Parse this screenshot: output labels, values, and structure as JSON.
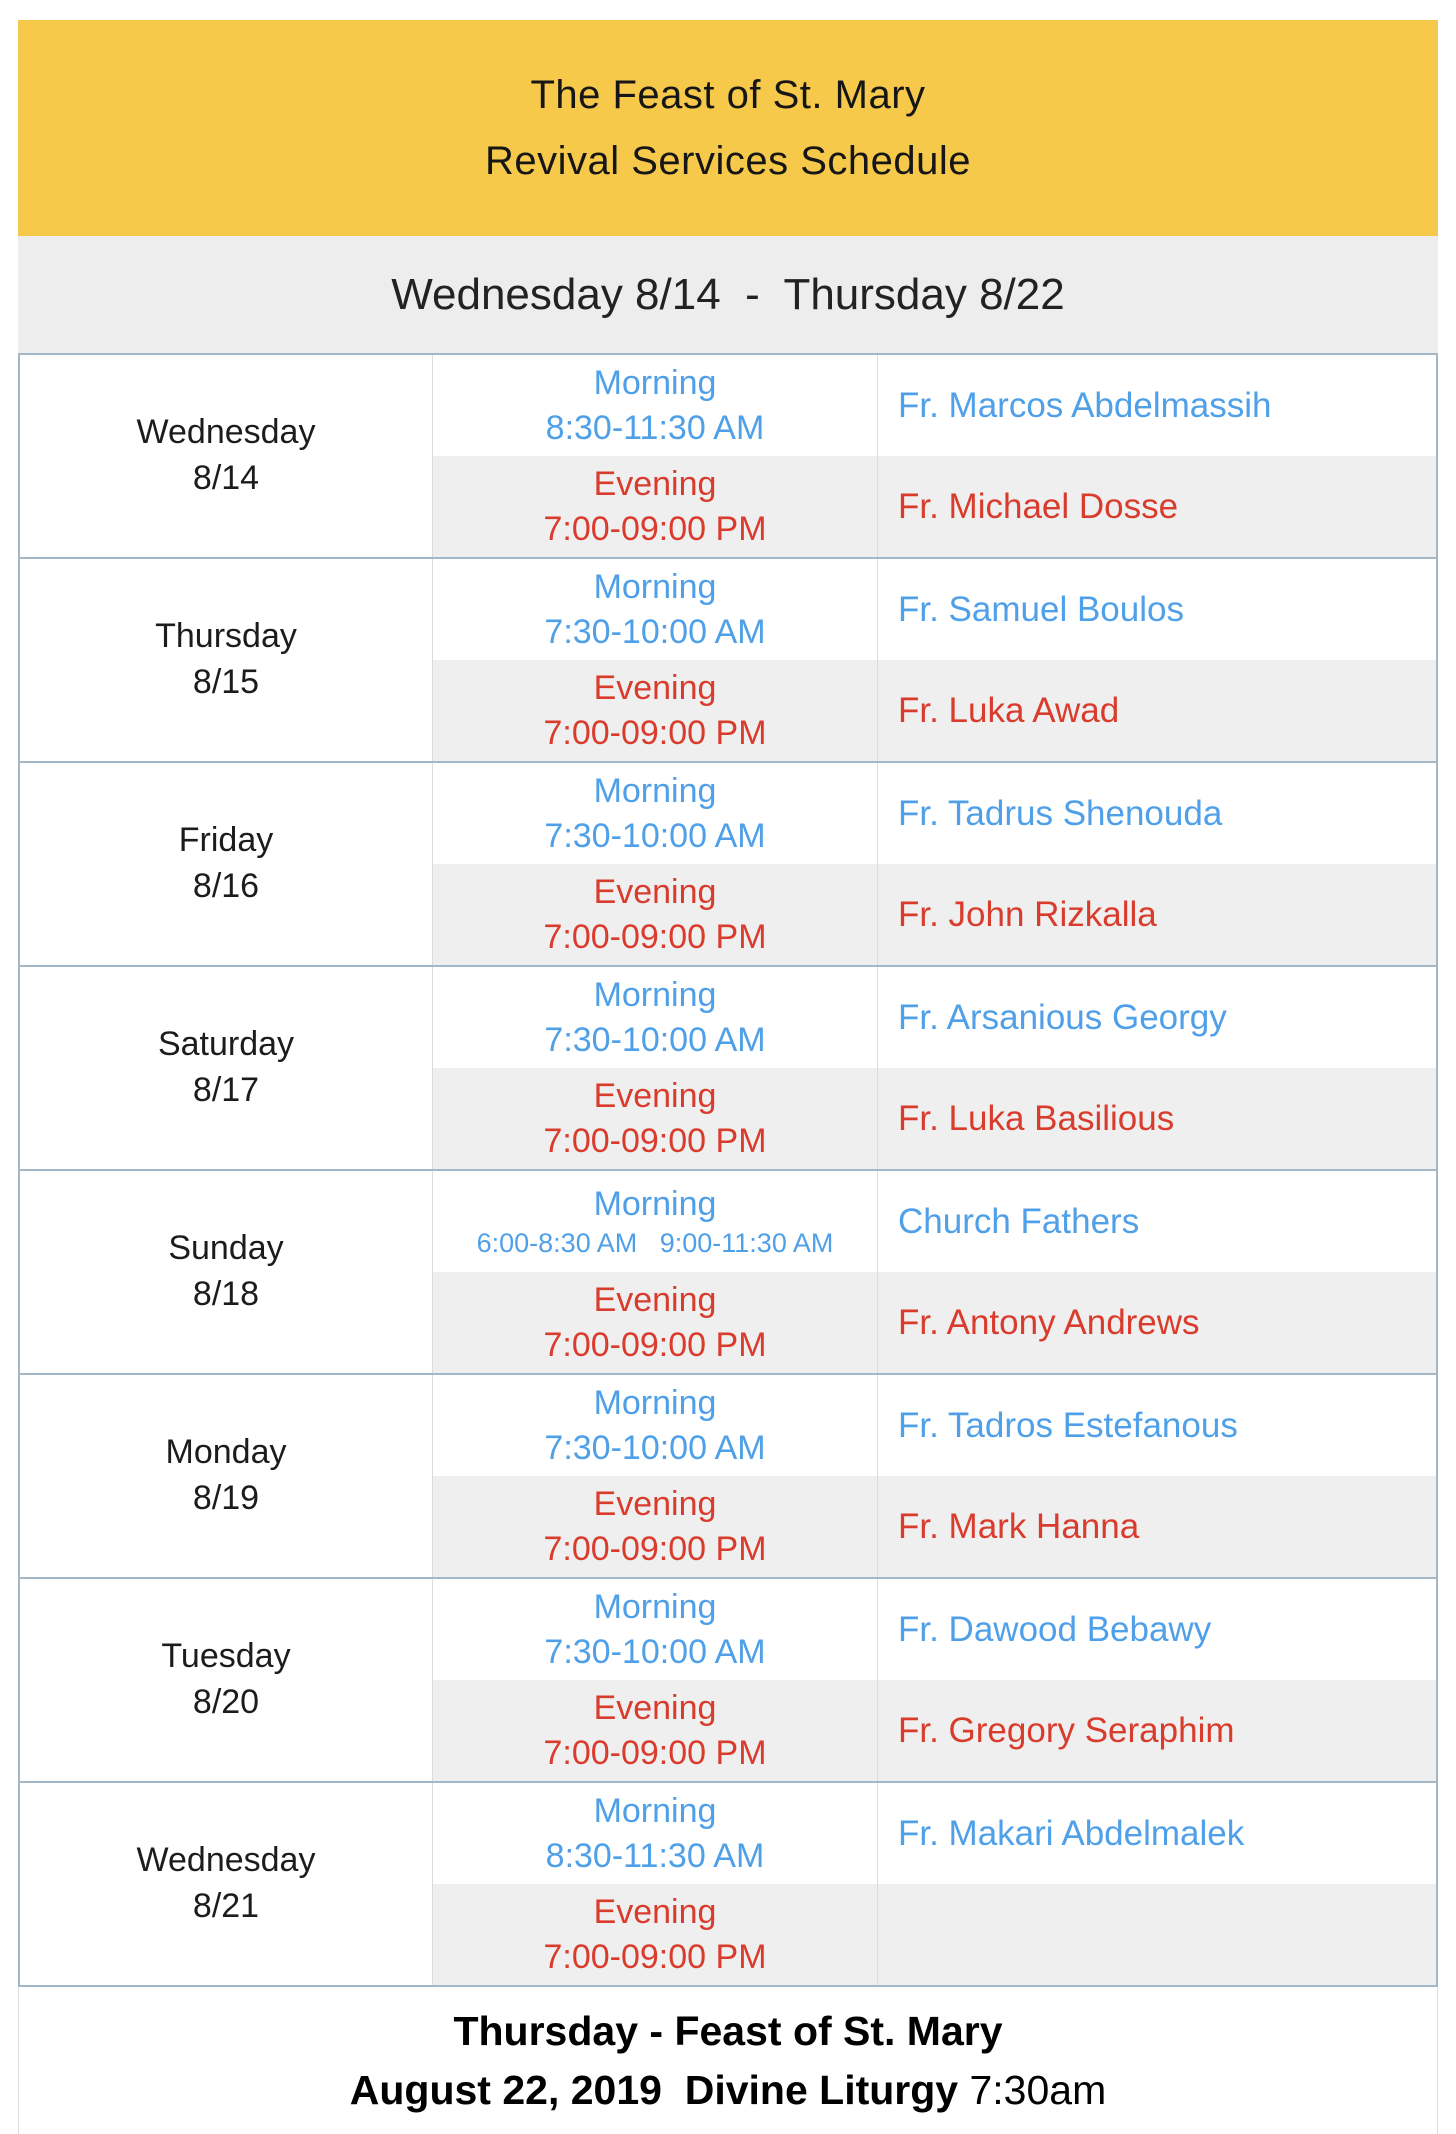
{
  "header": {
    "title_line1": "The Feast of St. Mary",
    "title_line2": "Revival Services Schedule",
    "date_range": "Wednesday 8/14  -  Thursday 8/22"
  },
  "colors": {
    "banner_yellow": "#F6C94B",
    "range_band_gray": "#EDEDED",
    "morning_blue": "#4FA0E8",
    "evening_red": "#D93C2C",
    "evening_row_gray": "#EFEFEF",
    "group_border": "#A2B8C8"
  },
  "schedule": {
    "days": [
      {
        "day": "Wednesday",
        "date": "8/14",
        "morning": {
          "label": "Morning",
          "time": "8:30-11:30 AM",
          "name": "Fr. Marcos Abdelmassih"
        },
        "evening": {
          "label": "Evening",
          "time": "7:00-09:00 PM",
          "name": "Fr. Michael Dosse"
        }
      },
      {
        "day": "Thursday",
        "date": "8/15",
        "morning": {
          "label": "Morning",
          "time": "7:30-10:00 AM",
          "name": "Fr. Samuel Boulos"
        },
        "evening": {
          "label": "Evening",
          "time": "7:00-09:00 PM",
          "name": "Fr. Luka Awad"
        }
      },
      {
        "day": "Friday",
        "date": "8/16",
        "morning": {
          "label": "Morning",
          "time": "7:30-10:00 AM",
          "name": "Fr. Tadrus Shenouda"
        },
        "evening": {
          "label": "Evening",
          "time": "7:00-09:00 PM",
          "name": "Fr. John Rizkalla"
        }
      },
      {
        "day": "Saturday",
        "date": "8/17",
        "morning": {
          "label": "Morning",
          "time": "7:30-10:00 AM",
          "name": "Fr. Arsanious Georgy"
        },
        "evening": {
          "label": "Evening",
          "time": "7:00-09:00 PM",
          "name": "Fr. Luka Basilious"
        }
      },
      {
        "day": "Sunday",
        "date": "8/18",
        "morning": {
          "label": "Morning",
          "time": "6:00-8:30 AM   9:00-11:30 AM",
          "name": "Church Fathers"
        },
        "evening": {
          "label": "Evening",
          "time": "7:00-09:00 PM",
          "name": "Fr. Antony Andrews"
        }
      },
      {
        "day": "Monday",
        "date": "8/19",
        "morning": {
          "label": "Morning",
          "time": "7:30-10:00 AM",
          "name": "Fr. Tadros Estefanous"
        },
        "evening": {
          "label": "Evening",
          "time": "7:00-09:00 PM",
          "name": "Fr. Mark Hanna"
        }
      },
      {
        "day": "Tuesday",
        "date": "8/20",
        "morning": {
          "label": "Morning",
          "time": "7:30-10:00 AM",
          "name": "Fr. Dawood Bebawy"
        },
        "evening": {
          "label": "Evening",
          "time": "7:00-09:00 PM",
          "name": "Fr. Gregory Seraphim"
        }
      },
      {
        "day": "Wednesday",
        "date": "8/21",
        "morning": {
          "label": "Morning",
          "time": "8:30-11:30 AM",
          "name": "Fr. Makari Abdelmalek"
        },
        "evening": {
          "label": "Evening",
          "time": "7:00-09:00 PM",
          "name": ""
        }
      }
    ]
  },
  "footer": {
    "line1": "Thursday - Feast of St. Mary",
    "line2_bold": "August 22, 2019  Divine Liturgy ",
    "line2_time": "7:30am"
  }
}
